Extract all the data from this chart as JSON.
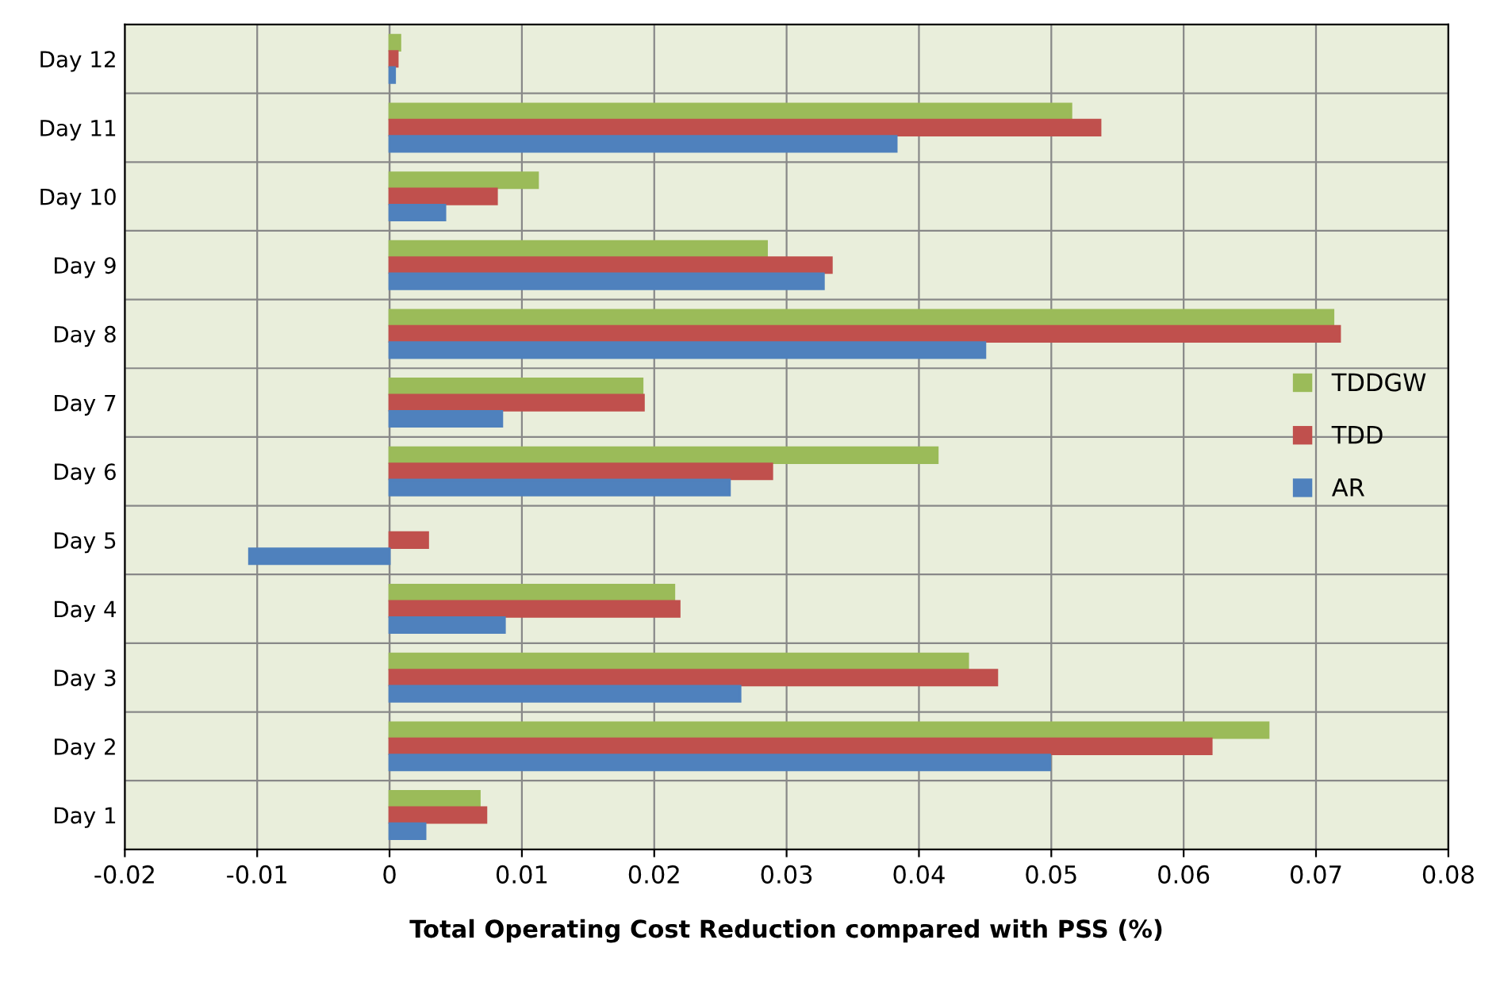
{
  "chart_data": {
    "type": "bar",
    "orientation": "horizontal",
    "xlabel": "Total Operating Cost Reduction compared with PSS (%)",
    "categories": [
      "Day 12",
      "Day 11",
      "Day 10",
      "Day 9",
      "Day 8",
      "Day 7",
      "Day 6",
      "Day 5",
      "Day 4",
      "Day 3",
      "Day 2",
      "Day 1"
    ],
    "series": [
      {
        "name": "TDDGW",
        "color": "#9bbb59",
        "values": [
          0.0008,
          0.0515,
          0.0112,
          0.0285,
          0.0713,
          0.0191,
          0.0414,
          null,
          0.0215,
          0.0437,
          0.0664,
          0.0068
        ]
      },
      {
        "name": "TDD",
        "color": "#c0504d",
        "values": [
          0.0006,
          0.0537,
          0.0081,
          0.0334,
          0.0718,
          0.0192,
          0.0289,
          0.0029,
          0.0219,
          0.0459,
          0.0621,
          0.0073
        ]
      },
      {
        "name": "AR",
        "color": "#4f81bd",
        "values": [
          0.0004,
          0.0383,
          0.0042,
          0.0328,
          0.045,
          0.0085,
          0.0257,
          -0.0106,
          0.0087,
          0.0265,
          0.0499,
          0.0027
        ]
      }
    ],
    "xlim": [
      -0.02,
      0.08
    ],
    "xticks": [
      -0.02,
      -0.01,
      0,
      0.01,
      0.02,
      0.03,
      0.04,
      0.05,
      0.06,
      0.07,
      0.08
    ],
    "grid": true,
    "legend": "right"
  }
}
